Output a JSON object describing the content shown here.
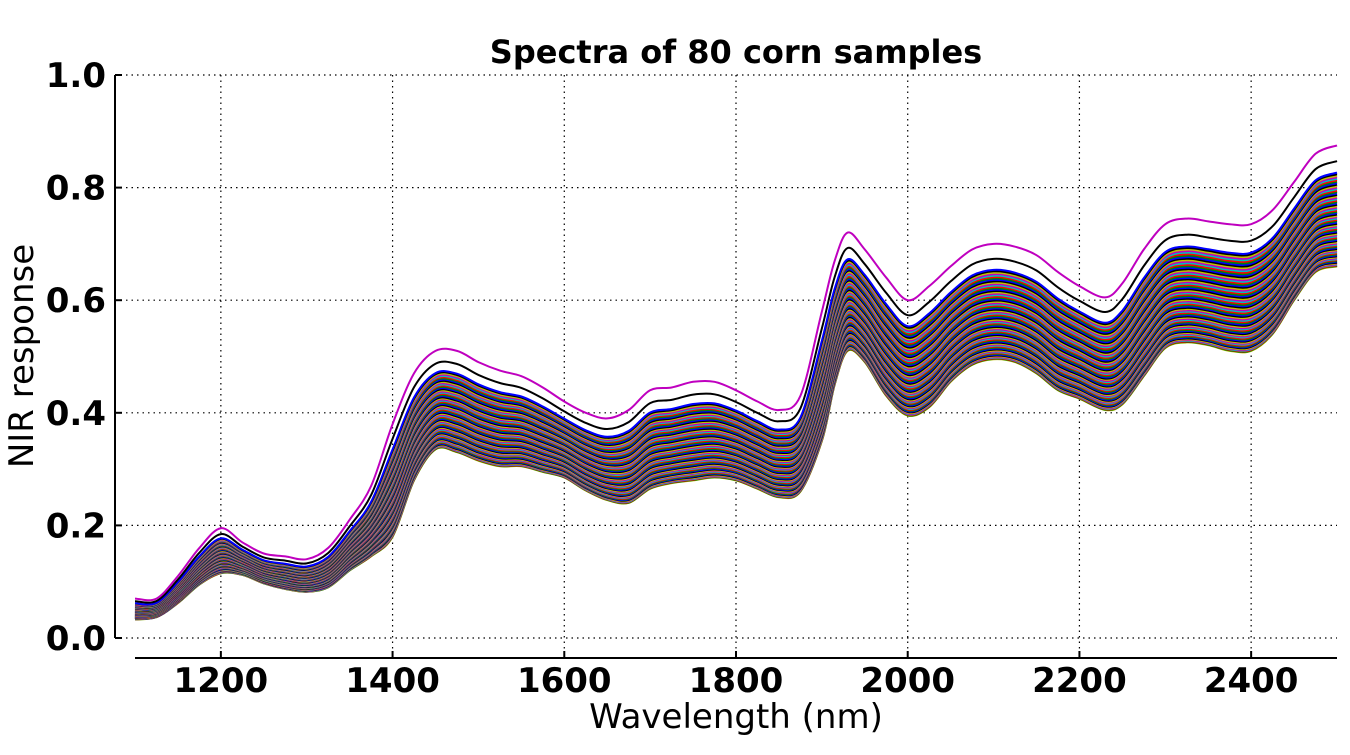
{
  "chart_data": {
    "type": "line",
    "title": "Spectra of 80 corn samples",
    "xlabel": "Wavelength (nm)",
    "ylabel": "NIR response",
    "xlim": [
      1100,
      2500
    ],
    "ylim": [
      0.0,
      1.0
    ],
    "grid": true,
    "grid_style": "dotted",
    "x_ticks": [
      1200,
      1400,
      1600,
      1800,
      2000,
      2200,
      2400
    ],
    "x_tick_labels": [
      "1200",
      "1400",
      "1600",
      "1800",
      "2000",
      "2200",
      "2400"
    ],
    "y_ticks": [
      0.0,
      0.2,
      0.4,
      0.6,
      0.8,
      1.0
    ],
    "y_tick_labels": [
      "0.0",
      "0.2",
      "0.4",
      "0.6",
      "0.8",
      "1.0"
    ],
    "series_count": 80,
    "wavelengths": [
      1100,
      1125,
      1150,
      1175,
      1200,
      1225,
      1250,
      1275,
      1300,
      1325,
      1350,
      1375,
      1400,
      1425,
      1450,
      1475,
      1500,
      1525,
      1550,
      1575,
      1600,
      1625,
      1650,
      1675,
      1700,
      1725,
      1750,
      1775,
      1800,
      1825,
      1850,
      1875,
      1900,
      1915,
      1930,
      1950,
      1975,
      2000,
      2025,
      2050,
      2075,
      2100,
      2125,
      2150,
      2175,
      2200,
      2230,
      2250,
      2275,
      2300,
      2325,
      2350,
      2375,
      2400,
      2425,
      2450,
      2475,
      2500
    ],
    "envelope_max": [
      0.07,
      0.07,
      0.11,
      0.16,
      0.195,
      0.17,
      0.15,
      0.145,
      0.14,
      0.16,
      0.21,
      0.27,
      0.38,
      0.47,
      0.51,
      0.51,
      0.49,
      0.475,
      0.465,
      0.445,
      0.42,
      0.4,
      0.39,
      0.405,
      0.44,
      0.445,
      0.455,
      0.455,
      0.44,
      0.42,
      0.405,
      0.43,
      0.58,
      0.67,
      0.72,
      0.69,
      0.64,
      0.6,
      0.625,
      0.66,
      0.69,
      0.7,
      0.695,
      0.68,
      0.65,
      0.625,
      0.605,
      0.63,
      0.69,
      0.735,
      0.745,
      0.74,
      0.735,
      0.735,
      0.76,
      0.81,
      0.86,
      0.875
    ],
    "envelope_min": [
      0.033,
      0.037,
      0.062,
      0.095,
      0.115,
      0.112,
      0.097,
      0.087,
      0.082,
      0.09,
      0.12,
      0.145,
      0.18,
      0.28,
      0.335,
      0.33,
      0.315,
      0.305,
      0.305,
      0.295,
      0.285,
      0.262,
      0.245,
      0.24,
      0.265,
      0.275,
      0.28,
      0.285,
      0.28,
      0.265,
      0.25,
      0.26,
      0.35,
      0.45,
      0.51,
      0.49,
      0.43,
      0.395,
      0.41,
      0.455,
      0.485,
      0.495,
      0.49,
      0.47,
      0.44,
      0.425,
      0.405,
      0.415,
      0.465,
      0.515,
      0.525,
      0.52,
      0.51,
      0.51,
      0.54,
      0.6,
      0.65,
      0.66
    ],
    "series_colors": [
      "#0000ff",
      "#008000",
      "#ff0000",
      "#00bfbf",
      "#bf00bf",
      "#bfbf00",
      "#000000"
    ],
    "highlight_colors": {
      "top": "#bf00bf",
      "second": "#000000",
      "bottom": "#bfbf00"
    }
  }
}
